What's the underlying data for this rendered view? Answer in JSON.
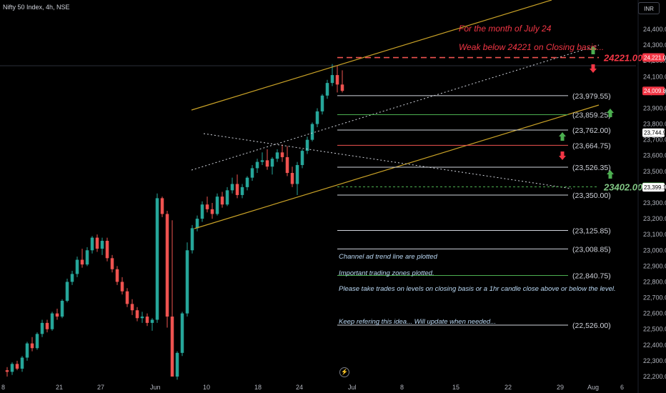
{
  "header": {
    "symbol": "Nifty 50 Index, 4h, NSE",
    "currency": "INR"
  },
  "colors": {
    "up": "#26a69a",
    "down": "#ef5350",
    "channel": "#c9a227",
    "level_white": "#d1d4dc",
    "level_green": "#4caf50",
    "level_red": "#ef5350",
    "annotation_red": "#f23645",
    "annotation_blue": "#bbd9f5",
    "background": "#000000"
  },
  "chart_data": {
    "type": "candlestick",
    "y_ticks": [
      22200,
      22300,
      22400,
      22500,
      22600,
      22700,
      22800,
      22900,
      23000,
      23100,
      23200,
      23300,
      23400,
      23500,
      23600,
      23700,
      23800,
      23900,
      24000,
      24100,
      24200,
      24300,
      24400
    ],
    "y_tick_labels": [
      "22,200.00",
      "22,300.00",
      "22,400.00",
      "22,500.00",
      "22,600.00",
      "22,700.00",
      "22,800.00",
      "22,900.00",
      "23,000.00",
      "23,100.00",
      "23,200.00",
      "23,300.00",
      "23,400.00",
      "23,500.00",
      "23,600.00",
      "23,700.00",
      "23,800.00",
      "23,900.00",
      "24,000.00",
      "24,100.00",
      "24,200.00",
      "24,300.00",
      "24,400.00"
    ],
    "ylim": [
      22180,
      24510
    ],
    "x_tick_labels": [
      "8",
      "21",
      "27",
      "Jun",
      "10",
      "18",
      "24",
      "Jul",
      "8",
      "15",
      "22",
      "29",
      "Aug",
      "6"
    ],
    "candles": [
      [
        22240,
        22260,
        22200,
        22230
      ],
      [
        22230,
        22290,
        22210,
        22280
      ],
      [
        22280,
        22300,
        22240,
        22250
      ],
      [
        22250,
        22330,
        22230,
        22320
      ],
      [
        22320,
        22420,
        22300,
        22410
      ],
      [
        22410,
        22450,
        22360,
        22380
      ],
      [
        22380,
        22480,
        22370,
        22470
      ],
      [
        22470,
        22560,
        22450,
        22540
      ],
      [
        22540,
        22560,
        22480,
        22500
      ],
      [
        22500,
        22610,
        22490,
        22600
      ],
      [
        22600,
        22630,
        22560,
        22580
      ],
      [
        22580,
        22690,
        22570,
        22680
      ],
      [
        22680,
        22820,
        22670,
        22800
      ],
      [
        22800,
        22870,
        22780,
        22850
      ],
      [
        22850,
        22960,
        22830,
        22940
      ],
      [
        22940,
        23010,
        22890,
        22910
      ],
      [
        22910,
        23020,
        22900,
        23000
      ],
      [
        23000,
        23090,
        22980,
        23080
      ],
      [
        23080,
        23100,
        22990,
        23010
      ],
      [
        23010,
        23080,
        22970,
        23060
      ],
      [
        23060,
        23080,
        22930,
        22950
      ],
      [
        22950,
        22970,
        22860,
        22880
      ],
      [
        22880,
        22900,
        22780,
        22800
      ],
      [
        22800,
        22830,
        22720,
        22740
      ],
      [
        22740,
        22760,
        22640,
        22660
      ],
      [
        22660,
        22690,
        22590,
        22620
      ],
      [
        22620,
        22640,
        22550,
        22570
      ],
      [
        22570,
        22610,
        22540,
        22580
      ],
      [
        22580,
        22600,
        22520,
        22540
      ],
      [
        22540,
        22570,
        22490,
        22560
      ],
      [
        22560,
        23360,
        22540,
        23330
      ],
      [
        23330,
        23340,
        23210,
        23230
      ],
      [
        23230,
        23250,
        22510,
        22580
      ],
      [
        22580,
        23190,
        22200,
        22200
      ],
      [
        22200,
        22360,
        22180,
        22350
      ],
      [
        22350,
        22610,
        22330,
        22600
      ],
      [
        22600,
        23050,
        22580,
        23000
      ],
      [
        23000,
        23160,
        22980,
        23140
      ],
      [
        23140,
        23220,
        23120,
        23200
      ],
      [
        23200,
        23310,
        23180,
        23290
      ],
      [
        23290,
        23340,
        23240,
        23260
      ],
      [
        23260,
        23300,
        23200,
        23230
      ],
      [
        23230,
        23360,
        23220,
        23340
      ],
      [
        23340,
        23370,
        23270,
        23290
      ],
      [
        23290,
        23400,
        23280,
        23380
      ],
      [
        23380,
        23460,
        23360,
        23420
      ],
      [
        23420,
        23480,
        23330,
        23350
      ],
      [
        23350,
        23420,
        23330,
        23400
      ],
      [
        23400,
        23470,
        23380,
        23460
      ],
      [
        23460,
        23540,
        23440,
        23520
      ],
      [
        23520,
        23580,
        23490,
        23560
      ],
      [
        23560,
        23620,
        23540,
        23570
      ],
      [
        23570,
        23640,
        23510,
        23530
      ],
      [
        23530,
        23590,
        23480,
        23580
      ],
      [
        23580,
        23640,
        23560,
        23620
      ],
      [
        23620,
        23670,
        23560,
        23590
      ],
      [
        23590,
        23660,
        23470,
        23490
      ],
      [
        23490,
        23530,
        23400,
        23420
      ],
      [
        23420,
        23560,
        23350,
        23540
      ],
      [
        23540,
        23640,
        23520,
        23630
      ],
      [
        23630,
        23720,
        23610,
        23700
      ],
      [
        23700,
        23810,
        23690,
        23800
      ],
      [
        23800,
        23900,
        23780,
        23880
      ],
      [
        23880,
        23990,
        23860,
        23980
      ],
      [
        23980,
        24080,
        23960,
        24060
      ],
      [
        24060,
        24180,
        24040,
        24110
      ],
      [
        24110,
        24170,
        24000,
        24050
      ],
      [
        24050,
        24140,
        24000,
        24010
      ]
    ],
    "levels": [
      {
        "value": 24221.0,
        "label": "24221.00",
        "kind": "red-dashed-major"
      },
      {
        "value": 23979.55,
        "label": "(23,979.55)",
        "kind": "white"
      },
      {
        "value": 23859.25,
        "label": "(23,859.25)",
        "kind": "green"
      },
      {
        "value": 23762.0,
        "label": "(23,762.00)",
        "kind": "white"
      },
      {
        "value": 23664.75,
        "label": "(23,664.75)",
        "kind": "red"
      },
      {
        "value": 23526.35,
        "label": "(23,526.35)",
        "kind": "white"
      },
      {
        "value": 23402.0,
        "label": "23402.00",
        "kind": "green-dashed-major"
      },
      {
        "value": 23350.0,
        "label": "(23,350.00)",
        "kind": "white"
      },
      {
        "value": 23125.85,
        "label": "(23,125.85)",
        "kind": "white"
      },
      {
        "value": 23008.85,
        "label": "(23,008.85)",
        "kind": "white"
      },
      {
        "value": 22840.75,
        "label": "(22,840.75)",
        "kind": "green"
      },
      {
        "value": 22526.0,
        "label": "(22,526.00)",
        "kind": "white"
      }
    ],
    "price_tags": [
      {
        "value": 24221.0,
        "label": "24,221.00",
        "color": "#f23645"
      },
      {
        "value": 24009.8,
        "label": "24,009.80",
        "color": "#f23645"
      },
      {
        "value": 23744.9,
        "label": "23,744.90",
        "color": "#ffffff"
      },
      {
        "value": 23402.0,
        "label": "23,402.00",
        "color": "#4caf50"
      },
      {
        "value": 23399.1,
        "label": "23,399.10",
        "color": "#ffffff"
      }
    ],
    "annotations": {
      "title": "For the month of July 24",
      "weak": "Weak below 24221 on Closing basis...",
      "note1": "Channel ad trend line are plotted",
      "note2": "Important trading zones plotted.",
      "note3": "Please take trades on levels on closing basis or a 1hr candle close above or below the level.",
      "note4": "Keep refering this idea... Will update when needed..."
    }
  }
}
